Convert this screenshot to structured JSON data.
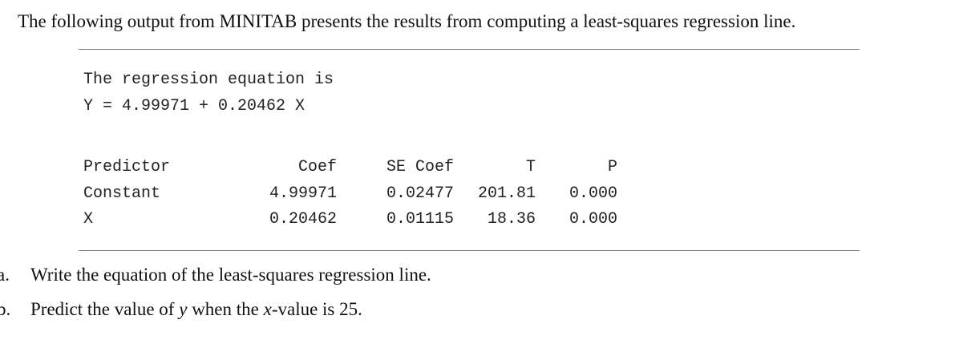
{
  "intro": "The following output from MINITAB presents the results from computing a least-squares regression line.",
  "output": {
    "heading": "The regression equation is",
    "equation": "Y = 4.99971 + 0.20462 X",
    "table": {
      "header": [
        "Predictor",
        "Coef",
        "SE Coef",
        "T",
        "P"
      ],
      "rows": [
        [
          "Constant",
          "4.99971",
          "0.02477",
          "201.81",
          "0.000"
        ],
        [
          "X",
          "0.20462",
          "0.01115",
          "18.36",
          "0.000"
        ]
      ]
    }
  },
  "questions": [
    {
      "label": "a.",
      "parts": [
        "Write the equation of the least-squares regression line."
      ]
    },
    {
      "label": "b.",
      "parts": [
        "Predict the value of ",
        "y",
        " when the ",
        "x",
        "-value is 25."
      ]
    }
  ]
}
